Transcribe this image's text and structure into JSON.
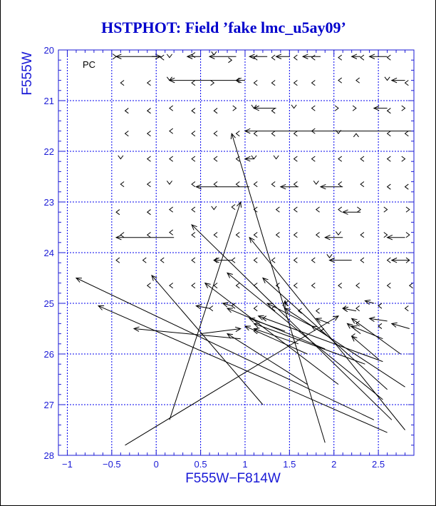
{
  "chart_data": {
    "type": "scatter",
    "title": "HSTPHOT: Field ’fake lmc_u5ay09’",
    "xlabel": "F555W−F814W",
    "ylabel": "F555W",
    "panel_label": "PC",
    "xlim": [
      -1.1,
      2.9
    ],
    "ylim": [
      28,
      20
    ],
    "xticks": [
      "−1",
      "−0.5",
      "0",
      "0.5",
      "1",
      "1.5",
      "2",
      "2.5"
    ],
    "yticks": [
      "20",
      "21",
      "22",
      "23",
      "24",
      "25",
      "26",
      "27",
      "28"
    ],
    "grid": true,
    "arrows": [
      {
        "x0": 0.05,
        "y0": 20.13,
        "x1": -0.45,
        "y1": 20.13
      },
      {
        "x0": -0.05,
        "y0": 20.13,
        "x1": 0.05,
        "y1": 20.13
      },
      {
        "x0": 0.5,
        "y0": 20.13,
        "x1": 0.35,
        "y1": 20.13
      },
      {
        "x0": 0.9,
        "y0": 20.13,
        "x1": 0.6,
        "y1": 20.13
      },
      {
        "x0": 1.25,
        "y0": 20.13,
        "x1": 1.05,
        "y1": 20.13
      },
      {
        "x0": 1.5,
        "y0": 20.13,
        "x1": 1.35,
        "y1": 20.13
      },
      {
        "x0": 1.85,
        "y0": 20.13,
        "x1": 1.65,
        "y1": 20.13
      },
      {
        "x0": 2.3,
        "y0": 20.13,
        "x1": 2.2,
        "y1": 20.13
      },
      {
        "x0": 2.6,
        "y0": 20.13,
        "x1": 2.4,
        "y1": 20.13
      },
      {
        "x0": 0.9,
        "y0": 20.6,
        "x1": 0.15,
        "y1": 20.6
      },
      {
        "x0": 1.0,
        "y0": 20.6,
        "x1": 0.9,
        "y1": 20.6
      },
      {
        "x0": 2.8,
        "y0": 20.6,
        "x1": 2.65,
        "y1": 20.6
      },
      {
        "x0": 2.9,
        "y0": 21.6,
        "x1": 1.0,
        "y1": 21.6
      },
      {
        "x0": 2.6,
        "y0": 21.15,
        "x1": 2.45,
        "y1": 21.15
      },
      {
        "x0": 1.35,
        "y0": 21.15,
        "x1": 1.1,
        "y1": 21.15
      },
      {
        "x0": 1.1,
        "y0": 22.15,
        "x1": 1.0,
        "y1": 22.15
      },
      {
        "x0": 1.05,
        "y0": 22.7,
        "x1": 0.45,
        "y1": 22.7
      },
      {
        "x0": 1.6,
        "y0": 22.7,
        "x1": 1.4,
        "y1": 22.7
      },
      {
        "x0": 2.1,
        "y0": 22.7,
        "x1": 1.85,
        "y1": 22.7
      },
      {
        "x0": 2.3,
        "y0": 23.2,
        "x1": 2.1,
        "y1": 23.2
      },
      {
        "x0": 0.2,
        "y0": 23.7,
        "x1": -0.45,
        "y1": 23.7
      },
      {
        "x0": 2.1,
        "y0": 23.7,
        "x1": 1.9,
        "y1": 23.7
      },
      {
        "x0": 2.8,
        "y0": 23.7,
        "x1": 2.6,
        "y1": 23.7
      },
      {
        "x0": 0.85,
        "y0": 24.15,
        "x1": 0.65,
        "y1": 24.15
      },
      {
        "x0": 2.2,
        "y0": 24.15,
        "x1": 1.95,
        "y1": 24.15
      },
      {
        "x0": 2.85,
        "y0": 24.15,
        "x1": 2.65,
        "y1": 24.15
      },
      {
        "x0": 1.9,
        "y0": 27.75,
        "x1": 0.85,
        "y1": 21.65
      },
      {
        "x0": 0.15,
        "y0": 27.3,
        "x1": 0.95,
        "y1": 23.0
      },
      {
        "x0": -0.35,
        "y0": 27.8,
        "x1": 2.05,
        "y1": 25.25
      },
      {
        "x0": 2.45,
        "y0": 27.3,
        "x1": -0.9,
        "y1": 24.5
      },
      {
        "x0": 2.6,
        "y0": 27.55,
        "x1": -0.65,
        "y1": 25.05
      },
      {
        "x0": 2.65,
        "y0": 27.3,
        "x1": 0.4,
        "y1": 23.45
      },
      {
        "x0": 1.2,
        "y0": 27.0,
        "x1": -0.05,
        "y1": 24.45
      },
      {
        "x0": 0.95,
        "y0": 25.7,
        "x1": -0.25,
        "y1": 25.5
      },
      {
        "x0": 2.8,
        "y0": 27.5,
        "x1": 1.05,
        "y1": 23.7
      },
      {
        "x0": 2.55,
        "y0": 26.9,
        "x1": 0.8,
        "y1": 24.4
      },
      {
        "x0": 2.6,
        "y0": 26.7,
        "x1": 1.2,
        "y1": 24.5
      },
      {
        "x0": 2.8,
        "y0": 26.65,
        "x1": 1.45,
        "y1": 25.1
      },
      {
        "x0": 2.05,
        "y0": 26.6,
        "x1": 0.55,
        "y1": 24.6
      },
      {
        "x0": 1.7,
        "y0": 26.6,
        "x1": 0.8,
        "y1": 25.6
      },
      {
        "x0": 2.35,
        "y0": 26.2,
        "x1": 1.1,
        "y1": 25.4
      },
      {
        "x0": 2.55,
        "y0": 26.15,
        "x1": 1.15,
        "y1": 25.25
      },
      {
        "x0": 1.9,
        "y0": 25.9,
        "x1": 0.8,
        "y1": 25.1
      },
      {
        "x0": 2.75,
        "y0": 26.0,
        "x1": 2.2,
        "y1": 25.3
      },
      {
        "x0": 1.7,
        "y0": 26.0,
        "x1": 1.0,
        "y1": 25.45
      },
      {
        "x0": 1.6,
        "y0": 25.8,
        "x1": 1.1,
        "y1": 25.5
      },
      {
        "x0": 2.55,
        "y0": 25.7,
        "x1": 2.2,
        "y1": 25.45
      },
      {
        "x0": 2.3,
        "y0": 25.6,
        "x1": 2.15,
        "y1": 25.4
      },
      {
        "x0": 2.5,
        "y0": 26.1,
        "x1": 2.2,
        "y1": 25.65
      },
      {
        "x0": 0.5,
        "y0": 25.6,
        "x1": 0.95,
        "y1": 25.5
      },
      {
        "x0": 1.45,
        "y0": 25.55,
        "x1": 1.05,
        "y1": 25.3
      },
      {
        "x0": 1.75,
        "y0": 25.45,
        "x1": 1.25,
        "y1": 25.0
      },
      {
        "x0": 1.45,
        "y0": 25.1,
        "x1": 1.45,
        "y1": 24.95
      },
      {
        "x0": 2.85,
        "y0": 25.5,
        "x1": 2.65,
        "y1": 25.4
      },
      {
        "x0": 2.6,
        "y0": 25.35,
        "x1": 2.4,
        "y1": 25.3
      },
      {
        "x0": 2.25,
        "y0": 25.15,
        "x1": 2.1,
        "y1": 25.1
      },
      {
        "x0": 2.45,
        "y0": 25.0,
        "x1": 2.35,
        "y1": 24.95
      },
      {
        "x0": 1.95,
        "y0": 25.4,
        "x1": 1.8,
        "y1": 25.3
      },
      {
        "x0": 1.85,
        "y0": 25.55,
        "x1": 1.75,
        "y1": 25.45
      },
      {
        "x0": 0.85,
        "y0": 25.05,
        "x1": 0.75,
        "y1": 25.0
      },
      {
        "x0": 0.6,
        "y0": 25.1,
        "x1": 0.45,
        "y1": 25.05
      }
    ],
    "markers": [
      {
        "x": -0.45,
        "y": 20.13,
        "dir": "right"
      },
      {
        "x": 0.05,
        "y": 20.15,
        "dir": "left"
      },
      {
        "x": 0.15,
        "y": 20.15,
        "dir": "down"
      },
      {
        "x": 0.4,
        "y": 20.1,
        "dir": "left"
      },
      {
        "x": 0.65,
        "y": 20.1,
        "dir": "down"
      },
      {
        "x": 0.85,
        "y": 20.2,
        "dir": "right"
      },
      {
        "x": 1.1,
        "y": 20.15,
        "dir": "left"
      },
      {
        "x": 1.3,
        "y": 20.15,
        "dir": "left"
      },
      {
        "x": 1.55,
        "y": 20.15,
        "dir": "left"
      },
      {
        "x": 1.75,
        "y": 20.15,
        "dir": "left"
      },
      {
        "x": 2.05,
        "y": 20.15,
        "dir": "left"
      },
      {
        "x": 2.3,
        "y": 20.15,
        "dir": "left"
      },
      {
        "x": 2.6,
        "y": 20.15,
        "dir": "left"
      },
      {
        "x": -0.4,
        "y": 20.65,
        "dir": "left"
      },
      {
        "x": -0.1,
        "y": 20.65,
        "dir": "left"
      },
      {
        "x": 0.15,
        "y": 20.6,
        "dir": "down"
      },
      {
        "x": 0.4,
        "y": 20.65,
        "dir": "left"
      },
      {
        "x": 0.65,
        "y": 20.65,
        "dir": "right"
      },
      {
        "x": 0.9,
        "y": 20.6,
        "dir": "left"
      },
      {
        "x": 1.1,
        "y": 20.65,
        "dir": "left"
      },
      {
        "x": 1.3,
        "y": 20.65,
        "dir": "left"
      },
      {
        "x": 1.55,
        "y": 20.65,
        "dir": "left"
      },
      {
        "x": 1.75,
        "y": 20.65,
        "dir": "left"
      },
      {
        "x": 2.05,
        "y": 20.6,
        "dir": "left"
      },
      {
        "x": 2.25,
        "y": 20.6,
        "dir": "left"
      },
      {
        "x": 2.6,
        "y": 20.6,
        "dir": "down"
      },
      {
        "x": 2.8,
        "y": 20.65,
        "dir": "left"
      },
      {
        "x": -0.35,
        "y": 21.2,
        "dir": "left"
      },
      {
        "x": -0.1,
        "y": 21.2,
        "dir": "left"
      },
      {
        "x": 0.15,
        "y": 21.15,
        "dir": "left"
      },
      {
        "x": 0.4,
        "y": 21.2,
        "dir": "left"
      },
      {
        "x": 0.65,
        "y": 21.2,
        "dir": "left"
      },
      {
        "x": 0.9,
        "y": 21.15,
        "dir": "right"
      },
      {
        "x": 1.1,
        "y": 21.15,
        "dir": "down"
      },
      {
        "x": 1.3,
        "y": 21.2,
        "dir": "left"
      },
      {
        "x": 1.55,
        "y": 21.15,
        "dir": "down"
      },
      {
        "x": 1.75,
        "y": 21.15,
        "dir": "left"
      },
      {
        "x": 2.05,
        "y": 21.15,
        "dir": "right"
      },
      {
        "x": 2.25,
        "y": 21.15,
        "dir": "right"
      },
      {
        "x": 2.6,
        "y": 21.2,
        "dir": "left"
      },
      {
        "x": 2.8,
        "y": 21.15,
        "dir": "right"
      },
      {
        "x": -0.35,
        "y": 21.65,
        "dir": "left"
      },
      {
        "x": -0.1,
        "y": 21.65,
        "dir": "left"
      },
      {
        "x": 0.15,
        "y": 21.6,
        "dir": "left"
      },
      {
        "x": 0.4,
        "y": 21.65,
        "dir": "left"
      },
      {
        "x": 0.65,
        "y": 21.65,
        "dir": "left"
      },
      {
        "x": 0.9,
        "y": 21.65,
        "dir": "left"
      },
      {
        "x": 1.1,
        "y": 21.65,
        "dir": "left"
      },
      {
        "x": 1.3,
        "y": 21.65,
        "dir": "left"
      },
      {
        "x": 1.55,
        "y": 21.65,
        "dir": "left"
      },
      {
        "x": 1.75,
        "y": 21.6,
        "dir": "left"
      },
      {
        "x": 2.05,
        "y": 21.65,
        "dir": "down"
      },
      {
        "x": 2.25,
        "y": 21.65,
        "dir": "up"
      },
      {
        "x": 2.6,
        "y": 21.65,
        "dir": "left"
      },
      {
        "x": 2.8,
        "y": 21.65,
        "dir": "left"
      },
      {
        "x": -0.4,
        "y": 22.15,
        "dir": "down"
      },
      {
        "x": -0.1,
        "y": 22.15,
        "dir": "left"
      },
      {
        "x": 0.15,
        "y": 22.15,
        "dir": "left"
      },
      {
        "x": 0.4,
        "y": 22.15,
        "dir": "left"
      },
      {
        "x": 0.65,
        "y": 22.15,
        "dir": "left"
      },
      {
        "x": 0.9,
        "y": 22.15,
        "dir": "left"
      },
      {
        "x": 1.1,
        "y": 22.15,
        "dir": "down"
      },
      {
        "x": 1.35,
        "y": 22.15,
        "dir": "down"
      },
      {
        "x": 1.55,
        "y": 22.15,
        "dir": "left"
      },
      {
        "x": 1.75,
        "y": 22.15,
        "dir": "left"
      },
      {
        "x": 2.05,
        "y": 22.15,
        "dir": "left"
      },
      {
        "x": 2.3,
        "y": 22.15,
        "dir": "left"
      },
      {
        "x": 2.6,
        "y": 22.15,
        "dir": "left"
      },
      {
        "x": 2.8,
        "y": 22.15,
        "dir": "right"
      },
      {
        "x": -0.4,
        "y": 22.65,
        "dir": "left"
      },
      {
        "x": -0.1,
        "y": 22.65,
        "dir": "left"
      },
      {
        "x": 0.15,
        "y": 22.65,
        "dir": "down"
      },
      {
        "x": 0.4,
        "y": 22.65,
        "dir": "left"
      },
      {
        "x": 0.65,
        "y": 22.65,
        "dir": "left"
      },
      {
        "x": 0.9,
        "y": 22.65,
        "dir": "left"
      },
      {
        "x": 1.1,
        "y": 22.65,
        "dir": "left"
      },
      {
        "x": 1.3,
        "y": 22.65,
        "dir": "left"
      },
      {
        "x": 1.55,
        "y": 22.65,
        "dir": "left"
      },
      {
        "x": 1.8,
        "y": 22.65,
        "dir": "down"
      },
      {
        "x": 2.05,
        "y": 22.65,
        "dir": "left"
      },
      {
        "x": 2.3,
        "y": 22.65,
        "dir": "left"
      },
      {
        "x": 2.6,
        "y": 22.7,
        "dir": "left"
      },
      {
        "x": 2.8,
        "y": 22.7,
        "dir": "left"
      },
      {
        "x": -0.45,
        "y": 23.2,
        "dir": "left"
      },
      {
        "x": -0.1,
        "y": 23.2,
        "dir": "left"
      },
      {
        "x": 0.15,
        "y": 23.15,
        "dir": "left"
      },
      {
        "x": 0.4,
        "y": 23.15,
        "dir": "left"
      },
      {
        "x": 0.65,
        "y": 23.15,
        "dir": "down"
      },
      {
        "x": 0.85,
        "y": 23.1,
        "dir": "left"
      },
      {
        "x": 1.1,
        "y": 23.15,
        "dir": "left"
      },
      {
        "x": 1.35,
        "y": 23.15,
        "dir": "left"
      },
      {
        "x": 1.55,
        "y": 23.15,
        "dir": "left"
      },
      {
        "x": 1.8,
        "y": 23.15,
        "dir": "left"
      },
      {
        "x": 2.05,
        "y": 23.15,
        "dir": "left"
      },
      {
        "x": 2.3,
        "y": 23.15,
        "dir": "right"
      },
      {
        "x": 2.6,
        "y": 23.15,
        "dir": "right"
      },
      {
        "x": 2.85,
        "y": 23.15,
        "dir": "right"
      },
      {
        "x": -0.4,
        "y": 23.65,
        "dir": "left"
      },
      {
        "x": -0.1,
        "y": 23.65,
        "dir": "left"
      },
      {
        "x": 0.15,
        "y": 23.6,
        "dir": "left"
      },
      {
        "x": 0.4,
        "y": 23.65,
        "dir": "left"
      },
      {
        "x": 0.65,
        "y": 23.65,
        "dir": "left"
      },
      {
        "x": 0.9,
        "y": 23.65,
        "dir": "left"
      },
      {
        "x": 1.1,
        "y": 23.65,
        "dir": "left"
      },
      {
        "x": 1.35,
        "y": 23.65,
        "dir": "left"
      },
      {
        "x": 1.55,
        "y": 23.65,
        "dir": "left"
      },
      {
        "x": 1.8,
        "y": 23.65,
        "dir": "left"
      },
      {
        "x": 2.05,
        "y": 23.65,
        "dir": "down"
      },
      {
        "x": 2.3,
        "y": 23.65,
        "dir": "left"
      },
      {
        "x": 2.6,
        "y": 23.65,
        "dir": "right"
      },
      {
        "x": 2.85,
        "y": 23.65,
        "dir": "right"
      },
      {
        "x": -0.45,
        "y": 24.15,
        "dir": "left"
      },
      {
        "x": -0.15,
        "y": 24.15,
        "dir": "left"
      },
      {
        "x": 0.05,
        "y": 24.15,
        "dir": "left"
      },
      {
        "x": 0.4,
        "y": 24.15,
        "dir": "left"
      },
      {
        "x": 0.65,
        "y": 24.15,
        "dir": "left"
      },
      {
        "x": 0.85,
        "y": 24.15,
        "dir": "left"
      },
      {
        "x": 1.1,
        "y": 24.15,
        "dir": "left"
      },
      {
        "x": 1.3,
        "y": 24.15,
        "dir": "left"
      },
      {
        "x": 1.55,
        "y": 24.15,
        "dir": "left"
      },
      {
        "x": 1.75,
        "y": 24.15,
        "dir": "left"
      },
      {
        "x": 1.95,
        "y": 24.1,
        "dir": "down"
      },
      {
        "x": 2.3,
        "y": 24.15,
        "dir": "left"
      },
      {
        "x": 2.6,
        "y": 24.15,
        "dir": "left"
      },
      {
        "x": 2.85,
        "y": 24.15,
        "dir": "right"
      },
      {
        "x": -0.1,
        "y": 24.65,
        "dir": "left"
      },
      {
        "x": 0.15,
        "y": 24.65,
        "dir": "left"
      },
      {
        "x": 0.4,
        "y": 24.65,
        "dir": "left"
      },
      {
        "x": 0.65,
        "y": 24.65,
        "dir": "left"
      },
      {
        "x": 0.9,
        "y": 24.65,
        "dir": "left"
      },
      {
        "x": 1.1,
        "y": 24.65,
        "dir": "left"
      },
      {
        "x": 1.35,
        "y": 24.65,
        "dir": "left"
      },
      {
        "x": 1.55,
        "y": 24.65,
        "dir": "left"
      },
      {
        "x": 1.75,
        "y": 24.65,
        "dir": "left"
      },
      {
        "x": 2.05,
        "y": 24.65,
        "dir": "left"
      },
      {
        "x": 2.25,
        "y": 24.65,
        "dir": "left"
      },
      {
        "x": 2.6,
        "y": 24.65,
        "dir": "left"
      },
      {
        "x": 2.85,
        "y": 24.65,
        "dir": "left"
      },
      {
        "x": 0.6,
        "y": 25.1,
        "dir": "left"
      },
      {
        "x": 0.85,
        "y": 25.05,
        "dir": "left"
      },
      {
        "x": 1.1,
        "y": 25.1,
        "dir": "left"
      },
      {
        "x": 1.3,
        "y": 25.1,
        "dir": "left"
      },
      {
        "x": 1.45,
        "y": 25.0,
        "dir": "left"
      },
      {
        "x": 1.6,
        "y": 25.15,
        "dir": "left"
      },
      {
        "x": 1.8,
        "y": 25.15,
        "dir": "left"
      },
      {
        "x": 2.1,
        "y": 25.1,
        "dir": "left"
      },
      {
        "x": 2.25,
        "y": 25.1,
        "dir": "left"
      },
      {
        "x": 2.5,
        "y": 25.05,
        "dir": "left"
      },
      {
        "x": 2.8,
        "y": 25.1,
        "dir": "left"
      },
      {
        "x": 1.1,
        "y": 25.55,
        "dir": "left"
      },
      {
        "x": 1.2,
        "y": 25.3,
        "dir": "left"
      },
      {
        "x": 1.85,
        "y": 25.55,
        "dir": "left"
      },
      {
        "x": 2.25,
        "y": 25.4,
        "dir": "left"
      },
      {
        "x": 2.5,
        "y": 25.45,
        "dir": "left"
      },
      {
        "x": 2.2,
        "y": 25.65,
        "dir": "left"
      }
    ]
  }
}
